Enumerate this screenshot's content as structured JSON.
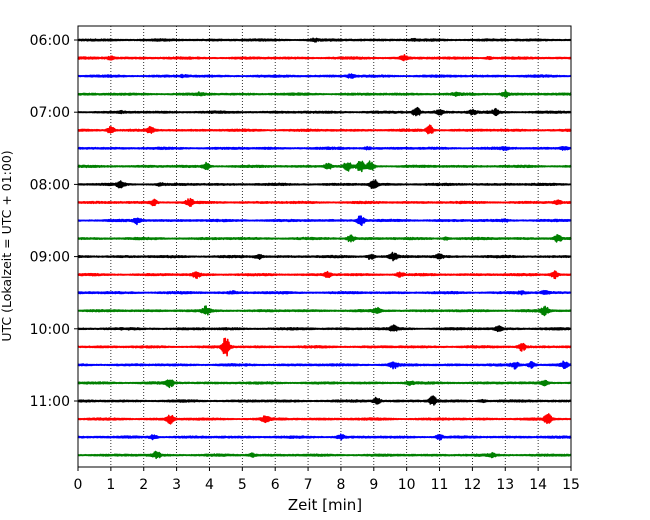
{
  "chart_data": {
    "type": "line",
    "title": "",
    "xlabel": "Zeit  [min]",
    "ylabel": "UTC (Lokalzeit = UTC + 01:00)",
    "xlim": [
      0,
      15
    ],
    "x_ticks": [
      "0",
      "1",
      "2",
      "3",
      "4",
      "5",
      "6",
      "7",
      "8",
      "9",
      "10",
      "11",
      "12",
      "13",
      "14",
      "15"
    ],
    "y_ticks": [
      "06:00",
      "07:00",
      "08:00",
      "09:00",
      "10:00",
      "11:00"
    ],
    "y_tick_rows": [
      0,
      4,
      8,
      12,
      16,
      20
    ],
    "grid": "vertical dotted at each minute",
    "trace_interval_minutes": 15,
    "line_colors": [
      "#000000",
      "#ff0000",
      "#0000ff",
      "#008000"
    ],
    "traces": [
      {
        "start": "06:00",
        "events": [
          [
            7.2,
            0.2
          ],
          [
            10.2,
            0.12
          ]
        ]
      },
      {
        "start": "06:15",
        "events": [
          [
            1.0,
            0.25
          ],
          [
            9.9,
            0.55
          ],
          [
            12.5,
            0.18
          ]
        ]
      },
      {
        "start": "06:30",
        "events": [
          [
            3.2,
            0.15
          ],
          [
            8.3,
            0.3
          ]
        ]
      },
      {
        "start": "06:45",
        "events": [
          [
            3.7,
            0.2
          ],
          [
            13.0,
            0.55
          ],
          [
            11.5,
            0.15
          ]
        ]
      },
      {
        "start": "07:00",
        "events": [
          [
            1.3,
            0.15
          ],
          [
            10.3,
            0.8
          ],
          [
            11.0,
            0.55
          ],
          [
            12.0,
            0.4
          ],
          [
            12.7,
            0.45
          ]
        ]
      },
      {
        "start": "07:15",
        "events": [
          [
            1.0,
            0.6
          ],
          [
            2.2,
            0.45
          ],
          [
            10.7,
            0.75
          ]
        ]
      },
      {
        "start": "07:30",
        "events": [
          [
            8.8,
            0.2
          ],
          [
            13.0,
            0.2
          ],
          [
            14.8,
            0.3
          ]
        ]
      },
      {
        "start": "07:45",
        "events": [
          [
            3.9,
            0.55
          ],
          [
            7.6,
            0.55
          ],
          [
            8.2,
            0.75
          ],
          [
            8.6,
            0.85
          ],
          [
            8.9,
            0.8
          ]
        ]
      },
      {
        "start": "08:00",
        "events": [
          [
            1.3,
            0.55
          ],
          [
            2.5,
            0.2
          ],
          [
            9.0,
            0.9
          ]
        ]
      },
      {
        "start": "08:15",
        "events": [
          [
            2.3,
            0.45
          ],
          [
            3.4,
            0.65
          ],
          [
            14.6,
            0.3
          ]
        ]
      },
      {
        "start": "08:30",
        "events": [
          [
            1.8,
            0.55
          ],
          [
            8.6,
            0.9
          ],
          [
            13.0,
            0.15
          ]
        ]
      },
      {
        "start": "08:45",
        "events": [
          [
            8.3,
            0.55
          ],
          [
            14.6,
            0.55
          ],
          [
            11.2,
            0.2
          ]
        ]
      },
      {
        "start": "09:00",
        "events": [
          [
            5.5,
            0.35
          ],
          [
            8.9,
            0.45
          ],
          [
            9.6,
            0.6
          ],
          [
            11.0,
            0.35
          ]
        ]
      },
      {
        "start": "09:15",
        "events": [
          [
            3.6,
            0.55
          ],
          [
            7.6,
            0.4
          ],
          [
            9.8,
            0.45
          ],
          [
            14.5,
            0.65
          ]
        ]
      },
      {
        "start": "09:30",
        "events": [
          [
            4.7,
            0.2
          ],
          [
            13.5,
            0.2
          ],
          [
            14.2,
            0.25
          ]
        ]
      },
      {
        "start": "09:45",
        "events": [
          [
            3.9,
            0.65
          ],
          [
            9.1,
            0.4
          ],
          [
            14.2,
            0.7
          ]
        ]
      },
      {
        "start": "10:00",
        "events": [
          [
            9.6,
            0.45
          ],
          [
            12.8,
            0.35
          ]
        ]
      },
      {
        "start": "10:15",
        "events": [
          [
            4.5,
            1.6
          ],
          [
            13.5,
            0.7
          ]
        ]
      },
      {
        "start": "10:30",
        "events": [
          [
            9.6,
            0.55
          ],
          [
            13.3,
            0.55
          ],
          [
            13.8,
            0.5
          ],
          [
            14.8,
            0.5
          ]
        ]
      },
      {
        "start": "10:45",
        "events": [
          [
            2.8,
            0.65
          ],
          [
            10.1,
            0.3
          ],
          [
            14.2,
            0.35
          ]
        ]
      },
      {
        "start": "11:00",
        "events": [
          [
            9.1,
            0.6
          ],
          [
            10.8,
            0.75
          ],
          [
            12.3,
            0.2
          ]
        ]
      },
      {
        "start": "11:15",
        "events": [
          [
            2.8,
            0.7
          ],
          [
            5.7,
            0.45
          ],
          [
            14.3,
            0.75
          ]
        ]
      },
      {
        "start": "11:30",
        "events": [
          [
            2.3,
            0.45
          ],
          [
            8.0,
            0.4
          ],
          [
            11.0,
            0.35
          ]
        ]
      },
      {
        "start": "11:45",
        "events": [
          [
            2.4,
            0.55
          ],
          [
            5.3,
            0.25
          ],
          [
            12.6,
            0.25
          ]
        ]
      }
    ]
  }
}
